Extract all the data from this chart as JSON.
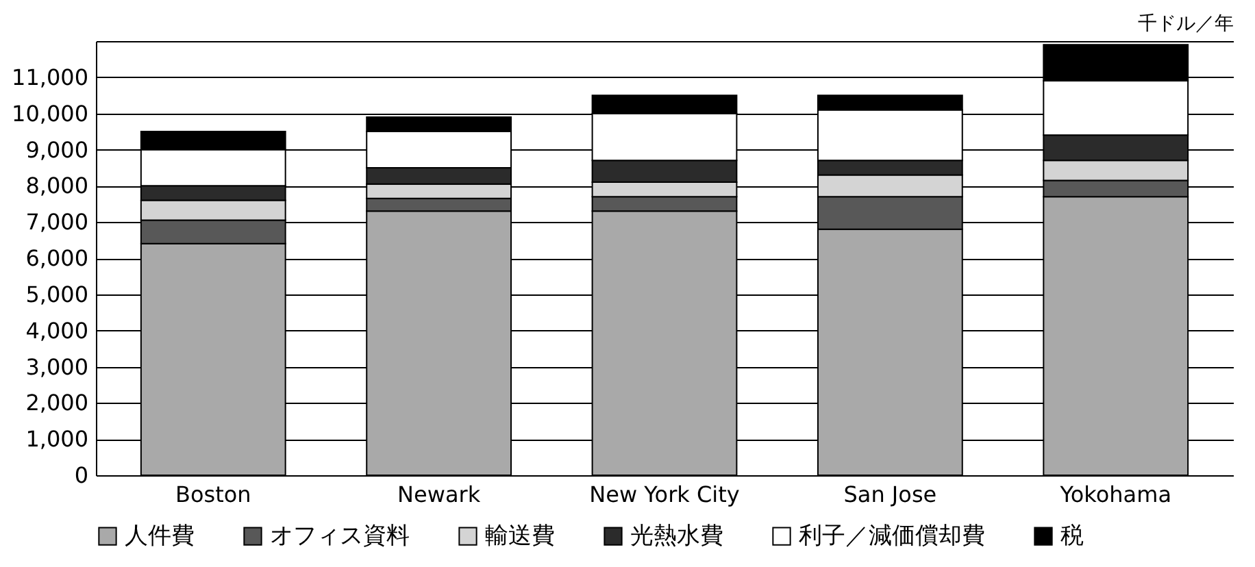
{
  "chart_data": {
    "type": "bar",
    "stacked": true,
    "ylabel": "千ドル／年",
    "categories": [
      "Boston",
      "Newark",
      "New York City",
      "San Jose",
      "Yokohama"
    ],
    "series": [
      {
        "name": "人件費",
        "color": "#a9a9a9",
        "values": [
          6400,
          7300,
          7300,
          6800,
          7700
        ]
      },
      {
        "name": "オフィス資料",
        "color": "#585858",
        "values": [
          650,
          350,
          400,
          900,
          450
        ]
      },
      {
        "name": "輸送費",
        "color": "#d4d4d4",
        "values": [
          550,
          400,
          400,
          600,
          550
        ]
      },
      {
        "name": "光熱水費",
        "color": "#2b2b2b",
        "values": [
          400,
          450,
          600,
          400,
          700
        ]
      },
      {
        "name": "利子／減価償却費",
        "color": "#ffffff",
        "values": [
          1000,
          1000,
          1300,
          1400,
          1500
        ]
      },
      {
        "name": "税",
        "color": "#000000",
        "values": [
          500,
          400,
          500,
          400,
          1000
        ]
      }
    ],
    "ylim": [
      0,
      12000
    ],
    "yticks": [
      0,
      {
        "value": 1000,
        "label": "1,000"
      },
      {
        "value": 2000,
        "label": "2,000"
      },
      {
        "value": 3000,
        "label": "3,000"
      },
      {
        "value": 4000,
        "label": "4,000"
      },
      {
        "value": 5000,
        "label": "5,000"
      },
      {
        "value": 6000,
        "label": "6,000"
      },
      {
        "value": 7000,
        "label": "7,000"
      },
      {
        "value": 8000,
        "label": "8,000"
      },
      {
        "value": 9000,
        "label": "9,000"
      },
      {
        "value": 10000,
        "label": "10,000"
      },
      {
        "value": 11000,
        "label": "11,000"
      },
      {
        "value": 12000,
        "label": null
      }
    ],
    "grid": "y",
    "legend": "bottom"
  }
}
